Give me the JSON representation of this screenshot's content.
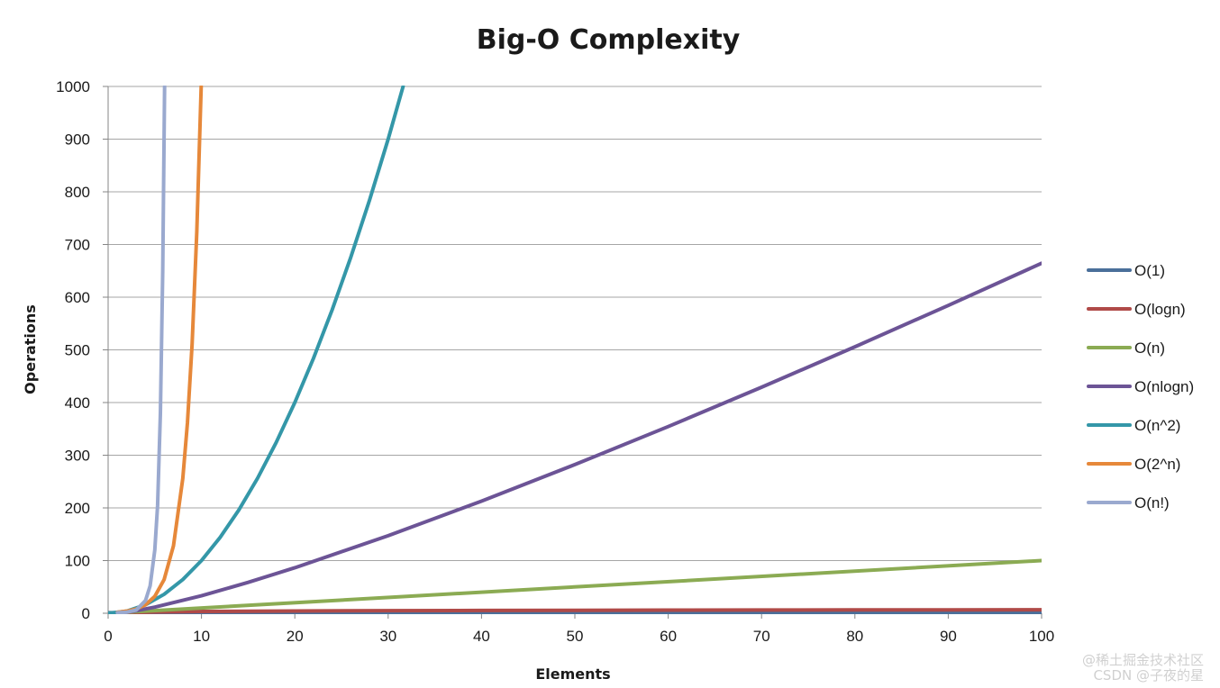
{
  "chart_data": {
    "type": "line",
    "title": "Big-O Complexity",
    "xlabel": "Elements",
    "ylabel": "Operations",
    "xlim": [
      0,
      100
    ],
    "ylim": [
      0,
      1000
    ],
    "x_ticks": [
      0,
      10,
      20,
      30,
      40,
      50,
      60,
      70,
      80,
      90,
      100
    ],
    "y_ticks": [
      0,
      100,
      200,
      300,
      400,
      500,
      600,
      700,
      800,
      900,
      1000
    ],
    "grid": "horizontal",
    "legend": "right",
    "series": [
      {
        "name": "O(1)",
        "color": "#4a6f9a",
        "x": [
          0,
          100
        ],
        "y": [
          1,
          1
        ]
      },
      {
        "name": "O(logn)",
        "color": "#b04a48",
        "x": [
          1,
          2,
          5,
          10,
          20,
          30,
          40,
          50,
          60,
          70,
          80,
          90,
          100
        ],
        "y": [
          0,
          1,
          2.32,
          3.32,
          4.32,
          4.91,
          5.32,
          5.64,
          5.91,
          6.13,
          6.32,
          6.49,
          6.64
        ]
      },
      {
        "name": "O(n)",
        "color": "#8bab53",
        "x": [
          0,
          100
        ],
        "y": [
          0,
          100
        ]
      },
      {
        "name": "O(nlogn)",
        "color": "#6c5496",
        "x": [
          1,
          2,
          3,
          5,
          10,
          15,
          20,
          30,
          40,
          50,
          60,
          70,
          80,
          90,
          100
        ],
        "y": [
          0,
          2,
          4.75,
          11.6,
          33.2,
          58.6,
          86.4,
          147.2,
          212.9,
          282.2,
          354.4,
          429.1,
          505.8,
          584.3,
          664.4
        ]
      },
      {
        "name": "O(n^2)",
        "color": "#3497a8",
        "x": [
          0,
          2,
          4,
          6,
          8,
          10,
          12,
          14,
          16,
          18,
          20,
          22,
          24,
          26,
          28,
          30,
          31.6
        ],
        "y": [
          0,
          4,
          16,
          36,
          64,
          100,
          144,
          196,
          256,
          324,
          400,
          484,
          576,
          676,
          784,
          900,
          1000
        ]
      },
      {
        "name": "O(2^n)",
        "color": "#e6883a",
        "x": [
          1,
          2,
          3,
          4,
          5,
          6,
          7,
          8,
          8.5,
          9,
          9.5,
          9.97
        ],
        "y": [
          2,
          4,
          8,
          16,
          32,
          64,
          128,
          256,
          362,
          512,
          724,
          1000
        ]
      },
      {
        "name": "O(n!)",
        "color": "#9aa9cf",
        "x": [
          1,
          2,
          3,
          4,
          4.5,
          5,
          5.3,
          5.6,
          5.85,
          6.05
        ],
        "y": [
          1,
          2,
          6,
          24,
          52,
          120,
          205,
          380,
          650,
          1000
        ]
      }
    ]
  },
  "watermark": {
    "line1": "@稀土掘金技术社区",
    "line2": "CSDN @子夜的星"
  }
}
